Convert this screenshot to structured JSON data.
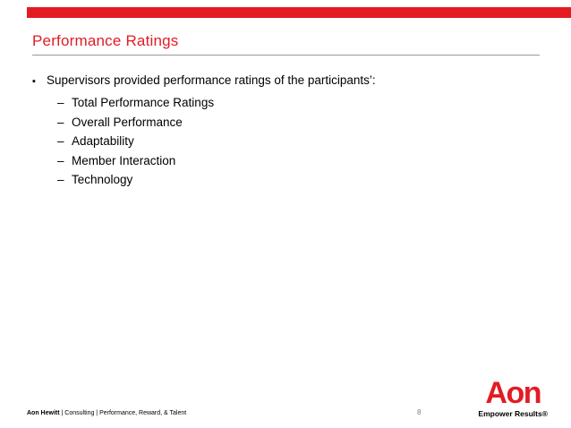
{
  "slide": {
    "title": "Performance Ratings",
    "markers": {
      "main": "▪",
      "sub": "–"
    },
    "bullets": {
      "main": "Supervisors provided performance ratings of the participants’:",
      "sub": [
        "Total Performance Ratings",
        "Overall Performance",
        "Adaptability",
        "Member Interaction",
        "Technology"
      ]
    },
    "footer": {
      "brand": "Aon Hewitt",
      "rest": "|  Consulting  |  Performance, Reward, & Talent",
      "page_number": "8"
    },
    "logo": {
      "wordmark": "Aon",
      "tagline": "Empower Results®"
    },
    "colors": {
      "accent_red": "#E31B23",
      "divider_gray": "#999999",
      "footer_gray": "#808080"
    }
  }
}
